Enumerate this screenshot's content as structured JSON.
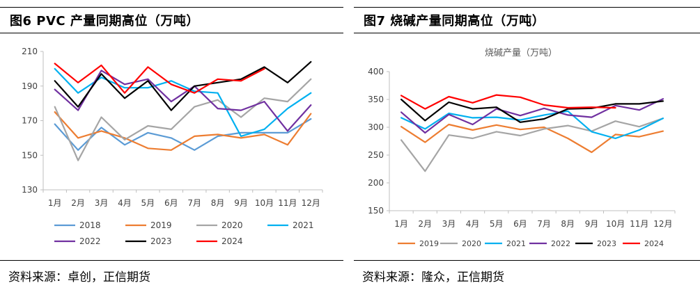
{
  "panels": [
    {
      "figure_title": "图6   PVC 产量同期高位（万吨）",
      "source": "资料来源：卓创，正信期货"
    },
    {
      "figure_title": "图7  烧碱产量同期高位（万吨）",
      "source": "资料来源：隆众，正信期货"
    }
  ],
  "chart_data": [
    {
      "type": "line",
      "title": "",
      "categories": [
        "1月",
        "2月",
        "3月",
        "4月",
        "5月",
        "6月",
        "7月",
        "8月",
        "9月",
        "10月",
        "11月",
        "12月"
      ],
      "ylim": [
        130,
        210
      ],
      "yticks": [
        130,
        150,
        170,
        190,
        210
      ],
      "grid": false,
      "legend_position": "bottom",
      "series": [
        {
          "name": "2018",
          "color": "#5B9BD5",
          "values": [
            168,
            153,
            166,
            156,
            163,
            160,
            153,
            161,
            163,
            163,
            163,
            171
          ]
        },
        {
          "name": "2019",
          "color": "#ED7D31",
          "values": [
            175,
            160,
            164,
            160,
            154,
            153,
            161,
            162,
            160,
            162,
            156,
            174
          ]
        },
        {
          "name": "2020",
          "color": "#A5A5A5",
          "values": [
            178,
            147,
            172,
            159,
            167,
            165,
            178,
            182,
            172,
            183,
            181,
            194
          ]
        },
        {
          "name": "2021",
          "color": "#00B0F0",
          "values": [
            200,
            186,
            195,
            189,
            189,
            193,
            187,
            186,
            161,
            165,
            177,
            186
          ]
        },
        {
          "name": "2022",
          "color": "#7030A0",
          "values": [
            188,
            176,
            199,
            191,
            194,
            181,
            190,
            177,
            176,
            181,
            164,
            179
          ]
        },
        {
          "name": "2023",
          "color": "#000000",
          "values": [
            193,
            178,
            197,
            183,
            193,
            176,
            190,
            192,
            194,
            201,
            192,
            204
          ]
        },
        {
          "name": "2024",
          "color": "#FF0000",
          "values": [
            203,
            192,
            202,
            186,
            201,
            191,
            186,
            194,
            193,
            200,
            null,
            null
          ]
        }
      ]
    },
    {
      "type": "line",
      "title": "烧碱产量（万吨）",
      "categories": [
        "1月",
        "2月",
        "3月",
        "4月",
        "5月",
        "6月",
        "7月",
        "8月",
        "9月",
        "10月",
        "11月",
        "12月"
      ],
      "ylim": [
        150,
        400
      ],
      "yticks": [
        150,
        200,
        250,
        300,
        350,
        400
      ],
      "grid": false,
      "legend_position": "bottom",
      "series": [
        {
          "name": "2019",
          "color": "#ED7D31",
          "values": [
            301,
            273,
            305,
            295,
            304,
            296,
            300,
            280,
            255,
            287,
            283,
            293
          ]
        },
        {
          "name": "2020",
          "color": "#A5A5A5",
          "values": [
            277,
            221,
            286,
            280,
            292,
            285,
            297,
            303,
            293,
            311,
            301,
            316
          ]
        },
        {
          "name": "2021",
          "color": "#00B0F0",
          "values": [
            317,
            297,
            325,
            317,
            318,
            313,
            322,
            329,
            292,
            280,
            295,
            316
          ]
        },
        {
          "name": "2022",
          "color": "#7030A0",
          "values": [
            327,
            290,
            323,
            305,
            333,
            321,
            334,
            322,
            318,
            339,
            331,
            351
          ]
        },
        {
          "name": "2023",
          "color": "#000000",
          "values": [
            350,
            312,
            345,
            333,
            336,
            309,
            315,
            333,
            334,
            342,
            342,
            347
          ]
        },
        {
          "name": "2024",
          "color": "#FF0000",
          "values": [
            357,
            333,
            355,
            344,
            358,
            354,
            340,
            335,
            336,
            335,
            null,
            null
          ]
        }
      ]
    }
  ]
}
